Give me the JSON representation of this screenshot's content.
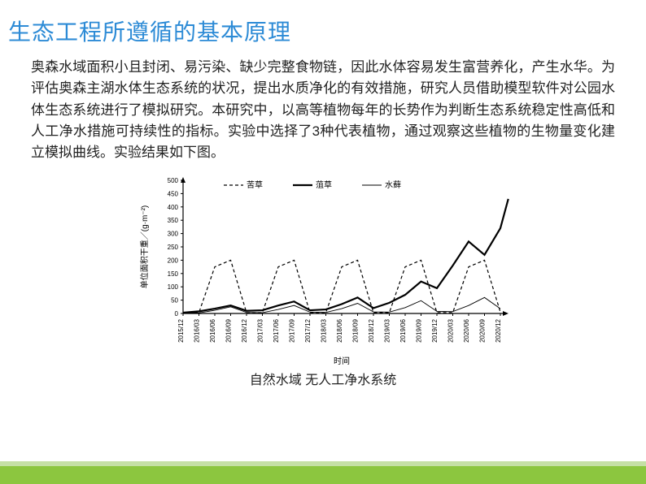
{
  "title": {
    "text": "生态工程所遵循的基本原理",
    "color": "#2d8bd6",
    "fontsize": 28
  },
  "paragraph": "奥森水域面积小且封闭、易污染、缺少完整食物链，因此水体容易发生富营养化，产生水华。为评估奥森主湖水体生态系统的状况，提出水质净化的有效措施，研究人员借助模型软件对公园水体生态系统进行了模拟研究。本研究中，以高等植物每年的长势作为判断生态系统稳定性高低和人工净水措施可持续性的指标。实验中选择了3种代表植物，通过观察这些植物的生物量变化建立模拟曲线。实验结果如下图。",
  "chart": {
    "type": "line",
    "ylabel": "单位面积干重／(g·m⁻²)",
    "xlabel": "时间",
    "ylim": [
      0,
      500
    ],
    "ytick_step": 50,
    "xticks": [
      "2015/12",
      "2016/03",
      "2016/06",
      "2016/09",
      "2016/12",
      "2017/03",
      "2017/06",
      "2017/09",
      "2017/12",
      "2018/03",
      "2018/06",
      "2018/09",
      "2018/12",
      "2019/03",
      "2019/06",
      "2019/09",
      "2019/12",
      "2020/03",
      "2020/06",
      "2020/09",
      "2020/12"
    ],
    "legend": [
      {
        "label": "苦草",
        "style": "dashed",
        "color": "#000000"
      },
      {
        "label": "菹草",
        "style": "thick",
        "color": "#000000"
      },
      {
        "label": "水藓",
        "style": "thin",
        "color": "#000000"
      }
    ],
    "series": {
      "kucao": {
        "style": "dashed",
        "points": [
          [
            0,
            3
          ],
          [
            1,
            3
          ],
          [
            2,
            175
          ],
          [
            3,
            200
          ],
          [
            4,
            3
          ],
          [
            5,
            3
          ],
          [
            6,
            175
          ],
          [
            7,
            200
          ],
          [
            8,
            3
          ],
          [
            9,
            3
          ],
          [
            10,
            175
          ],
          [
            11,
            200
          ],
          [
            12,
            3
          ],
          [
            13,
            3
          ],
          [
            14,
            175
          ],
          [
            15,
            200
          ],
          [
            16,
            3
          ],
          [
            17,
            3
          ],
          [
            18,
            175
          ],
          [
            19,
            200
          ],
          [
            20,
            5
          ]
        ]
      },
      "zucao": {
        "style": "thick",
        "points": [
          [
            0,
            3
          ],
          [
            1,
            8
          ],
          [
            2,
            18
          ],
          [
            3,
            30
          ],
          [
            4,
            10
          ],
          [
            5,
            12
          ],
          [
            6,
            30
          ],
          [
            7,
            45
          ],
          [
            8,
            12
          ],
          [
            9,
            15
          ],
          [
            10,
            35
          ],
          [
            11,
            60
          ],
          [
            12,
            20
          ],
          [
            13,
            40
          ],
          [
            14,
            70
          ],
          [
            15,
            120
          ],
          [
            16,
            95
          ],
          [
            17,
            180
          ],
          [
            18,
            270
          ],
          [
            19,
            220
          ],
          [
            20,
            320
          ],
          [
            20.5,
            430
          ]
        ]
      },
      "shuixian": {
        "style": "thin",
        "points": [
          [
            0,
            2
          ],
          [
            1,
            2
          ],
          [
            2,
            12
          ],
          [
            3,
            25
          ],
          [
            4,
            4
          ],
          [
            5,
            3
          ],
          [
            6,
            15
          ],
          [
            7,
            30
          ],
          [
            8,
            5
          ],
          [
            9,
            4
          ],
          [
            10,
            18
          ],
          [
            11,
            38
          ],
          [
            12,
            6
          ],
          [
            13,
            5
          ],
          [
            14,
            22
          ],
          [
            15,
            48
          ],
          [
            16,
            8
          ],
          [
            17,
            7
          ],
          [
            18,
            30
          ],
          [
            19,
            60
          ],
          [
            20,
            18
          ]
        ]
      }
    },
    "background_color": "#ffffff",
    "axis_color": "#000000",
    "fontsize_axis": 10,
    "fontsize_tick": 8
  },
  "caption": "自然水域 无人工净水系统",
  "footer": {
    "bar_color": "#8cc63f",
    "top_color": "#c5e0a5"
  }
}
